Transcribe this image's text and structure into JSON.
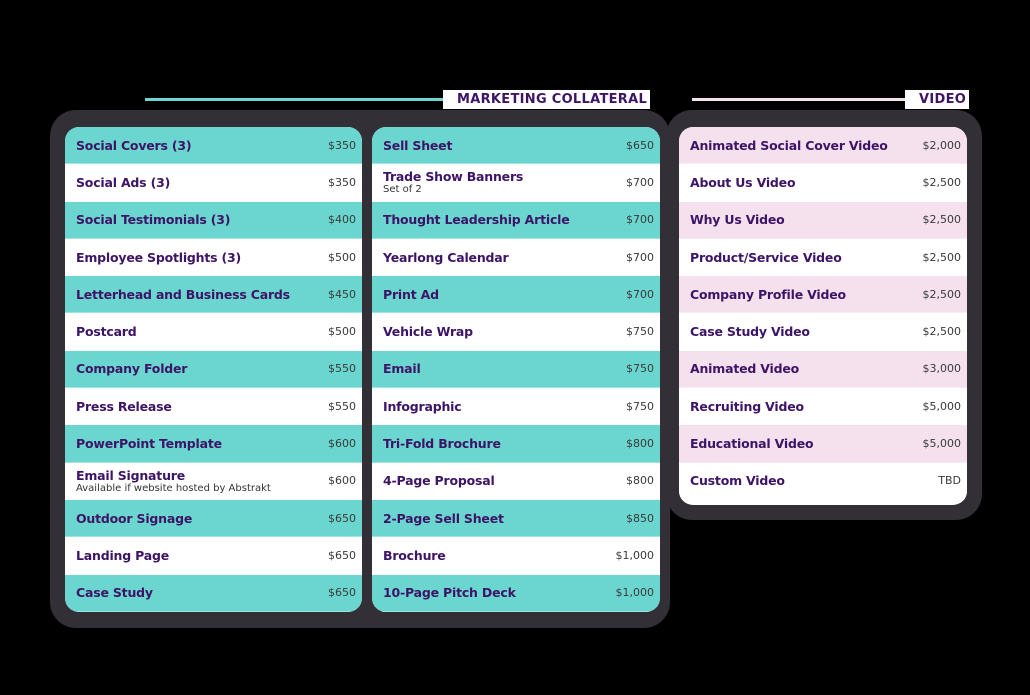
{
  "headers": {
    "marketing": {
      "label": "MARKETING COLLATERAL",
      "line_color": "#6bd6d0"
    },
    "video": {
      "label": "VIDEO",
      "line_color": "#f5e1ee"
    }
  },
  "colors": {
    "frame": "#332f36",
    "teal": "#6bd6d0",
    "pink": "#f5e1ee",
    "title_text": "#3d1466"
  },
  "columns": [
    {
      "id": "marketing-1",
      "items": [
        {
          "name": "Social Covers (3)",
          "price": "$350"
        },
        {
          "name": "Social Ads (3)",
          "price": "$350"
        },
        {
          "name": "Social Testimonials (3)",
          "price": "$400"
        },
        {
          "name": "Employee Spotlights (3)",
          "price": "$500"
        },
        {
          "name": "Letterhead and Business Cards",
          "price": "$450"
        },
        {
          "name": "Postcard",
          "price": "$500"
        },
        {
          "name": "Company Folder",
          "price": "$550"
        },
        {
          "name": "Press Release",
          "price": "$550"
        },
        {
          "name": "PowerPoint Template",
          "price": "$600"
        },
        {
          "name": "Email Signature",
          "note": "Available if website hosted by Abstrakt",
          "price": "$600"
        },
        {
          "name": "Outdoor Signage",
          "price": "$650"
        },
        {
          "name": "Landing Page",
          "price": "$650"
        },
        {
          "name": "Case Study",
          "price": "$650"
        }
      ]
    },
    {
      "id": "marketing-2",
      "items": [
        {
          "name": "Sell Sheet",
          "price": "$650"
        },
        {
          "name": "Trade Show Banners",
          "note": "Set of 2",
          "price": "$700"
        },
        {
          "name": "Thought Leadership Article",
          "price": "$700"
        },
        {
          "name": "Yearlong Calendar",
          "price": "$700"
        },
        {
          "name": "Print Ad",
          "price": "$700"
        },
        {
          "name": "Vehicle Wrap",
          "price": "$750"
        },
        {
          "name": "Email",
          "price": "$750"
        },
        {
          "name": "Infographic",
          "price": "$750"
        },
        {
          "name": "Tri-Fold Brochure",
          "price": "$800"
        },
        {
          "name": "4-Page Proposal",
          "price": "$800"
        },
        {
          "name": "2-Page Sell Sheet",
          "price": "$850"
        },
        {
          "name": "Brochure",
          "price": "$1,000"
        },
        {
          "name": "10-Page Pitch Deck",
          "price": "$1,000"
        }
      ]
    },
    {
      "id": "video",
      "items": [
        {
          "name": "Animated Social Cover Video",
          "price": "$2,000"
        },
        {
          "name": "About Us Video",
          "price": "$2,500"
        },
        {
          "name": "Why Us Video",
          "price": "$2,500"
        },
        {
          "name": "Product/Service Video",
          "price": "$2,500"
        },
        {
          "name": "Company Profile Video",
          "price": "$2,500"
        },
        {
          "name": "Case Study Video",
          "price": "$2,500"
        },
        {
          "name": "Animated Video",
          "price": "$3,000"
        },
        {
          "name": "Recruiting Video",
          "price": "$5,000"
        },
        {
          "name": "Educational Video",
          "price": "$5,000"
        },
        {
          "name": "Custom Video",
          "price": "TBD"
        }
      ]
    }
  ]
}
